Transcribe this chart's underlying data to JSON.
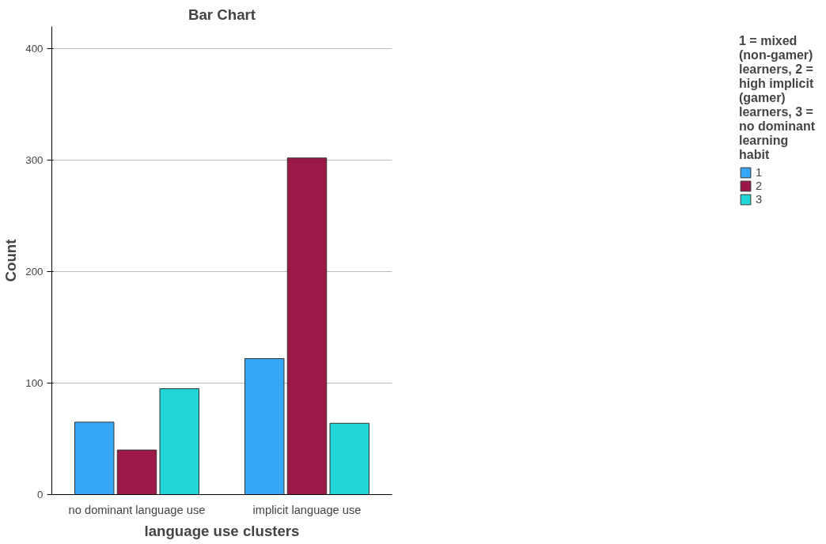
{
  "chart_data": {
    "type": "bar",
    "title": "Bar Chart",
    "xlabel": "language use clusters",
    "ylabel": "Count",
    "legend_title": "1 = mixed (non-gamer) learners, 2 = high implicit (gamer) learners, 3 = no dominant learning habit",
    "categories": [
      "no dominant language use",
      "implicit language use"
    ],
    "series": [
      {
        "name": "1",
        "color": "#36a6f7",
        "values": [
          65,
          122
        ]
      },
      {
        "name": "2",
        "color": "#9c1848",
        "values": [
          40,
          302
        ]
      },
      {
        "name": "3",
        "color": "#21d6d6",
        "values": [
          95,
          64
        ]
      }
    ],
    "ylim": [
      0,
      420
    ],
    "yticks": [
      0,
      100,
      200,
      300,
      400
    ],
    "grid": "y",
    "legend": "right"
  }
}
